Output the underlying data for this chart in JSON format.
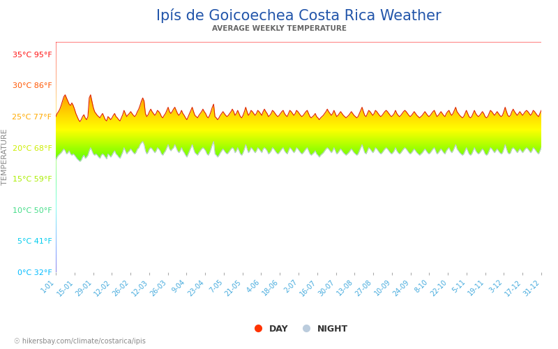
{
  "title": "Ipís de Goicoechea Costa Rica Weather",
  "subtitle": "AVERAGE WEEKLY TEMPERATURE",
  "ylabel": "TEMPERATURE",
  "footer": "hikersbay.com/climate/costarica/ipis",
  "yticks_celsius": [
    0,
    5,
    10,
    15,
    20,
    25,
    30,
    35
  ],
  "ytick_labels": [
    "0°C 32°F",
    "5°C 41°F",
    "10°C 50°F",
    "15°C 59°F",
    "20°C 68°F",
    "25°C 77°F",
    "30°C 86°F",
    "35°C 95°F"
  ],
  "ytick_colors": [
    "#00bbff",
    "#00ccee",
    "#44dd88",
    "#aaee00",
    "#ccee00",
    "#ffaa00",
    "#ff5500",
    "#ff1111"
  ],
  "xtick_labels": [
    "1-01",
    "15-01",
    "29-01",
    "12-02",
    "26-02",
    "12-03",
    "26-03",
    "9-04",
    "23-04",
    "7-05",
    "21-05",
    "4-06",
    "18-06",
    "2-07",
    "16-07",
    "30-07",
    "13-08",
    "27-08",
    "10-09",
    "24-09",
    "8-10",
    "22-10",
    "5-11",
    "19-11",
    "3-12",
    "17-12",
    "31-12"
  ],
  "ymin": 0,
  "ymax": 37,
  "background_color": "#ffffff",
  "title_color": "#2255aa",
  "subtitle_color": "#666666",
  "ylabel_color": "#888888",
  "xtick_color": "#44aadd",
  "grid_color": "#cccccc",
  "day_temp": [
    25.0,
    25.5,
    25.8,
    26.2,
    26.8,
    27.5,
    28.2,
    28.5,
    28.0,
    27.5,
    27.0,
    26.8,
    27.2,
    26.8,
    26.2,
    25.5,
    25.0,
    24.5,
    24.2,
    24.5,
    25.0,
    25.3,
    24.8,
    24.5,
    25.0,
    28.0,
    28.5,
    27.5,
    26.5,
    25.8,
    25.5,
    25.2,
    25.0,
    24.8,
    25.2,
    25.5,
    25.0,
    24.5,
    24.3,
    25.0,
    24.8,
    24.5,
    24.8,
    25.2,
    25.5,
    25.0,
    24.8,
    24.5,
    24.3,
    24.8,
    25.3,
    26.0,
    25.5,
    25.0,
    25.3,
    25.5,
    25.8,
    25.5,
    25.2,
    25.0,
    25.3,
    25.8,
    26.2,
    26.8,
    27.5,
    28.0,
    27.5,
    25.5,
    25.0,
    25.3,
    25.8,
    26.2,
    25.8,
    25.5,
    25.2,
    25.5,
    26.0,
    25.8,
    25.5,
    25.0,
    24.8,
    25.2,
    25.5,
    26.0,
    26.5,
    25.8,
    25.5,
    25.8,
    26.2,
    26.5,
    26.0,
    25.5,
    25.2,
    25.5,
    26.0,
    25.5,
    25.2,
    24.8,
    24.5,
    25.0,
    25.5,
    26.0,
    26.5,
    25.8,
    25.2,
    25.0,
    24.8,
    25.2,
    25.5,
    25.8,
    26.2,
    25.8,
    25.5,
    25.0,
    24.8,
    25.2,
    25.8,
    26.5,
    27.0,
    25.0,
    24.8,
    24.5,
    24.8,
    25.2,
    25.5,
    25.8,
    25.5,
    25.2,
    25.0,
    25.2,
    25.5,
    25.8,
    26.2,
    25.8,
    25.2,
    25.5,
    26.0,
    25.5,
    25.0,
    24.8,
    25.2,
    25.8,
    26.5,
    25.8,
    25.2,
    25.5,
    26.0,
    25.8,
    25.5,
    25.2,
    25.5,
    26.0,
    25.8,
    25.5,
    25.2,
    25.8,
    26.2,
    25.8,
    25.5,
    25.0,
    25.2,
    25.5,
    26.0,
    25.8,
    25.5,
    25.2,
    25.0,
    25.2,
    25.5,
    25.8,
    26.0,
    25.5,
    25.2,
    25.0,
    25.5,
    26.0,
    25.8,
    25.5,
    25.2,
    25.5,
    26.0,
    25.8,
    25.5,
    25.2,
    25.0,
    25.2,
    25.5,
    25.8,
    26.0,
    25.5,
    25.0,
    24.8,
    25.0,
    25.2,
    25.5,
    25.0,
    24.8,
    24.5,
    24.8,
    25.0,
    25.2,
    25.5,
    25.8,
    26.2,
    25.8,
    25.5,
    25.2,
    25.5,
    26.0,
    25.5,
    25.0,
    25.2,
    25.5,
    25.8,
    25.5,
    25.2,
    25.0,
    24.8,
    25.0,
    25.2,
    25.5,
    25.8,
    25.5,
    25.2,
    25.0,
    24.8,
    25.0,
    25.5,
    26.0,
    26.5,
    25.8,
    25.2,
    25.0,
    25.5,
    26.0,
    25.8,
    25.5,
    25.2,
    25.5,
    26.0,
    25.8,
    25.5,
    25.2,
    25.0,
    25.2,
    25.5,
    25.8,
    26.0,
    25.8,
    25.5,
    25.2,
    25.0,
    25.2,
    25.5,
    26.0,
    25.5,
    25.2,
    25.0,
    25.2,
    25.5,
    25.8,
    26.0,
    25.8,
    25.5,
    25.2,
    25.0,
    25.2,
    25.5,
    25.8,
    25.5,
    25.2,
    25.0,
    24.8,
    25.0,
    25.2,
    25.5,
    25.8,
    25.5,
    25.2,
    25.0,
    25.2,
    25.5,
    25.8,
    26.0,
    25.5,
    25.0,
    25.2,
    25.5,
    25.8,
    25.5,
    25.2,
    25.0,
    25.5,
    25.8,
    26.0,
    25.5,
    25.2,
    25.5,
    26.0,
    26.5,
    25.8,
    25.5,
    25.2,
    25.0,
    24.8,
    25.0,
    25.5,
    26.0,
    25.5,
    25.0,
    24.8,
    25.0,
    25.5,
    26.0,
    25.5,
    25.2,
    25.0,
    25.2,
    25.5,
    25.8,
    25.5,
    25.0,
    24.8,
    25.0,
    25.5,
    26.0,
    25.8,
    25.5,
    25.2,
    25.5,
    25.8,
    25.5,
    25.2,
    25.0,
    25.2,
    25.8,
    26.5,
    25.8,
    25.2,
    25.0,
    25.2,
    25.8,
    26.2,
    25.8,
    25.5,
    25.2,
    25.5,
    25.8,
    25.5,
    25.2,
    25.5,
    25.8,
    26.0,
    25.8,
    25.5,
    25.2,
    25.5,
    26.0,
    25.8,
    25.5,
    25.2,
    25.0,
    25.5,
    26.0
  ],
  "night_temp": [
    18.0,
    18.5,
    18.8,
    19.0,
    19.2,
    19.5,
    19.8,
    19.5,
    19.0,
    19.2,
    19.5,
    19.0,
    18.8,
    19.0,
    18.8,
    18.5,
    18.2,
    18.0,
    17.8,
    18.0,
    18.5,
    18.8,
    18.3,
    18.5,
    18.8,
    19.5,
    20.0,
    19.5,
    19.0,
    18.8,
    19.0,
    18.8,
    18.5,
    18.3,
    18.8,
    19.0,
    18.8,
    18.5,
    18.2,
    19.0,
    18.8,
    18.5,
    18.8,
    19.2,
    19.5,
    19.0,
    18.8,
    18.5,
    18.3,
    18.8,
    19.3,
    20.0,
    19.5,
    19.0,
    19.3,
    19.5,
    19.8,
    19.5,
    19.2,
    19.0,
    19.3,
    19.8,
    20.0,
    20.5,
    20.8,
    21.0,
    20.5,
    19.5,
    19.0,
    19.3,
    19.8,
    20.0,
    19.8,
    19.5,
    19.2,
    19.5,
    20.0,
    19.8,
    19.5,
    19.0,
    18.8,
    19.2,
    19.5,
    20.0,
    20.5,
    19.8,
    19.5,
    19.8,
    20.0,
    20.5,
    20.0,
    19.5,
    19.2,
    19.5,
    20.0,
    19.5,
    19.2,
    18.8,
    18.5,
    19.0,
    19.5,
    20.0,
    20.5,
    19.8,
    19.2,
    19.0,
    18.8,
    19.2,
    19.5,
    19.8,
    20.0,
    19.8,
    19.5,
    19.0,
    18.8,
    19.2,
    19.8,
    20.5,
    21.0,
    19.0,
    18.8,
    18.5,
    18.8,
    19.2,
    19.5,
    19.8,
    19.5,
    19.2,
    19.0,
    19.2,
    19.5,
    19.8,
    20.0,
    19.8,
    19.2,
    19.5,
    20.0,
    19.5,
    19.0,
    18.8,
    19.2,
    19.8,
    20.5,
    19.8,
    19.2,
    19.5,
    20.0,
    19.8,
    19.5,
    19.2,
    19.5,
    20.0,
    19.8,
    19.5,
    19.2,
    19.8,
    20.0,
    19.8,
    19.5,
    19.0,
    19.2,
    19.5,
    20.0,
    19.8,
    19.5,
    19.2,
    19.0,
    19.2,
    19.5,
    19.8,
    20.0,
    19.5,
    19.2,
    19.0,
    19.5,
    20.0,
    19.8,
    19.5,
    19.2,
    19.5,
    20.0,
    19.8,
    19.5,
    19.2,
    19.0,
    19.2,
    19.5,
    19.8,
    20.0,
    19.5,
    19.0,
    18.8,
    19.0,
    19.2,
    19.5,
    19.0,
    18.8,
    18.5,
    18.8,
    19.0,
    19.2,
    19.5,
    19.8,
    20.0,
    19.8,
    19.5,
    19.2,
    19.5,
    20.0,
    19.5,
    19.0,
    19.2,
    19.5,
    19.8,
    19.5,
    19.2,
    19.0,
    18.8,
    19.0,
    19.2,
    19.5,
    19.8,
    19.5,
    19.2,
    19.0,
    18.8,
    19.0,
    19.5,
    20.0,
    20.5,
    19.8,
    19.2,
    19.0,
    19.5,
    20.0,
    19.8,
    19.5,
    19.2,
    19.5,
    20.0,
    19.8,
    19.5,
    19.2,
    19.0,
    19.2,
    19.5,
    19.8,
    20.0,
    19.8,
    19.5,
    19.2,
    19.0,
    19.2,
    19.5,
    20.0,
    19.5,
    19.2,
    19.0,
    19.2,
    19.5,
    19.8,
    20.0,
    19.8,
    19.5,
    19.2,
    19.0,
    19.2,
    19.5,
    19.8,
    19.5,
    19.2,
    19.0,
    18.8,
    19.0,
    19.2,
    19.5,
    19.8,
    19.5,
    19.2,
    19.0,
    19.2,
    19.5,
    19.8,
    20.0,
    19.5,
    19.0,
    19.2,
    19.5,
    19.8,
    19.5,
    19.2,
    19.0,
    19.5,
    19.8,
    20.0,
    19.5,
    19.2,
    19.5,
    20.0,
    20.5,
    19.8,
    19.5,
    19.2,
    19.0,
    18.8,
    19.0,
    19.5,
    20.0,
    19.5,
    19.0,
    18.8,
    19.0,
    19.5,
    20.0,
    19.5,
    19.2,
    19.0,
    19.2,
    19.5,
    19.8,
    19.5,
    19.0,
    18.8,
    19.0,
    19.5,
    20.0,
    19.8,
    19.5,
    19.2,
    19.5,
    19.8,
    19.5,
    19.2,
    19.0,
    19.2,
    19.8,
    20.5,
    19.8,
    19.2,
    19.0,
    19.2,
    19.8,
    20.0,
    19.8,
    19.5,
    19.2,
    19.5,
    19.8,
    19.5,
    19.2,
    19.5,
    19.8,
    20.0,
    19.8,
    19.5,
    19.2,
    19.5,
    20.0,
    19.8,
    19.5,
    19.2,
    19.0,
    19.5,
    20.0
  ]
}
